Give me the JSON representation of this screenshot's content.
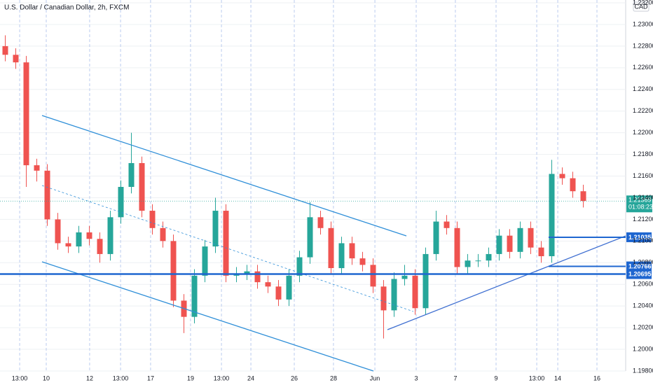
{
  "chart_data": {
    "type": "candlestick",
    "title": "U.S. Dollar / Canadian Dollar, 2h, FXCM",
    "currency": "CAD",
    "up_color": "#26a69a",
    "down_color": "#ef5350",
    "level_color": "#1e66d0",
    "x": [
      0,
      1,
      2,
      3,
      4,
      5,
      6,
      7,
      8,
      9,
      10,
      11,
      12,
      13,
      14,
      15,
      16,
      17,
      18,
      19,
      20,
      21,
      22,
      23,
      24,
      25,
      26,
      27,
      28,
      29,
      30,
      31,
      32,
      33,
      34,
      35,
      36,
      37,
      38,
      39,
      40,
      41,
      42,
      43,
      44,
      45,
      46,
      47,
      48,
      49,
      50,
      51,
      52,
      53,
      54,
      55
    ],
    "open": [
      1.228,
      1.2272,
      1.2265,
      1.217,
      1.2165,
      1.212,
      1.2098,
      1.2095,
      1.2108,
      1.2102,
      1.2088,
      1.2122,
      1.215,
      1.2172,
      1.2128,
      1.2112,
      1.21,
      1.2045,
      1.203,
      1.2068,
      1.2095,
      1.2128,
      1.2068,
      1.207,
      1.2072,
      1.2062,
      1.2058,
      1.2046,
      1.2068,
      1.2085,
      1.2122,
      1.2112,
      1.2075,
      1.2098,
      1.2084,
      1.2078,
      1.2058,
      1.2036,
      1.2065,
      1.2068,
      1.2038,
      1.2088,
      1.2118,
      1.2112,
      1.2076,
      1.2082,
      1.2082,
      1.2088,
      1.2105,
      1.209,
      1.2112,
      1.2094,
      1.2086,
      1.2162,
      1.2158,
      1.2146
    ],
    "high": [
      1.229,
      1.2278,
      1.2271,
      1.2176,
      1.2171,
      1.2126,
      1.2104,
      1.2114,
      1.2114,
      1.2108,
      1.2128,
      1.2156,
      1.22,
      1.2178,
      1.2134,
      1.2118,
      1.2106,
      1.2051,
      1.2074,
      1.2101,
      1.214,
      1.2134,
      1.2076,
      1.2078,
      1.2078,
      1.2068,
      1.2064,
      1.2074,
      1.2091,
      1.2136,
      1.2128,
      1.2118,
      1.2104,
      1.2104,
      1.209,
      1.2084,
      1.2064,
      1.2071,
      1.2078,
      1.2074,
      1.2094,
      1.2128,
      1.2124,
      1.2118,
      1.2088,
      1.2088,
      1.2094,
      1.2111,
      1.2111,
      1.2118,
      1.2118,
      1.21,
      1.2175,
      1.2168,
      1.2164,
      1.2152
    ],
    "low": [
      1.2266,
      1.2259,
      1.215,
      1.2155,
      1.2114,
      1.2092,
      1.2089,
      1.2089,
      1.2096,
      1.208,
      1.2082,
      1.2116,
      1.2144,
      1.2122,
      1.2106,
      1.2094,
      1.2039,
      1.2015,
      1.2024,
      1.2062,
      1.2089,
      1.2062,
      1.2062,
      1.2064,
      1.2056,
      1.2052,
      1.204,
      1.204,
      1.2062,
      1.2079,
      1.2106,
      1.2069,
      1.2069,
      1.2078,
      1.2072,
      1.2052,
      1.201,
      1.203,
      1.2059,
      1.2032,
      1.2032,
      1.2082,
      1.2106,
      1.207,
      1.207,
      1.2076,
      1.2076,
      1.2082,
      1.2084,
      1.2084,
      1.2088,
      1.208,
      1.208,
      1.2152,
      1.214,
      1.2131
    ],
    "close": [
      1.2272,
      1.2265,
      1.217,
      1.2165,
      1.212,
      1.2098,
      1.2095,
      1.2108,
      1.2102,
      1.2088,
      1.2122,
      1.215,
      1.2172,
      1.2128,
      1.2112,
      1.21,
      1.2045,
      1.203,
      1.2068,
      1.2095,
      1.2128,
      1.2068,
      1.207,
      1.2072,
      1.2062,
      1.2058,
      1.2046,
      1.2068,
      1.2085,
      1.2122,
      1.2112,
      1.2075,
      1.2098,
      1.2084,
      1.2078,
      1.2058,
      1.2036,
      1.2065,
      1.2068,
      1.2038,
      1.2088,
      1.2118,
      1.2112,
      1.2076,
      1.2082,
      1.2082,
      1.2088,
      1.2105,
      1.209,
      1.2112,
      1.2094,
      1.2086,
      1.2162,
      1.2158,
      1.2146,
      1.2137
    ],
    "xlim": [
      -0.5,
      59.033
    ],
    "xticks": [
      {
        "value": 1.37,
        "label": "13:00"
      },
      {
        "value": 3.9,
        "label": "10"
      },
      {
        "value": 8.03,
        "label": "12"
      },
      {
        "value": 10.97,
        "label": "13:00"
      },
      {
        "value": 13.83,
        "label": "17"
      },
      {
        "value": 17.63,
        "label": "19"
      },
      {
        "value": 20.57,
        "label": "13:00"
      },
      {
        "value": 23.37,
        "label": "24"
      },
      {
        "value": 27.5,
        "label": "26"
      },
      {
        "value": 31.23,
        "label": "28"
      },
      {
        "value": 35.17,
        "label": "Jun"
      },
      {
        "value": 39.1,
        "label": "3"
      },
      {
        "value": 42.83,
        "label": "7"
      },
      {
        "value": 46.7,
        "label": "9"
      },
      {
        "value": 50.57,
        "label": "13:00"
      },
      {
        "value": 52.57,
        "label": "14"
      },
      {
        "value": 56.3,
        "label": "16"
      }
    ],
    "ylim": [
      1.198,
      1.23226
    ],
    "yticks": [
      {
        "value": 1.198,
        "label": "1.19800"
      },
      {
        "value": 1.2,
        "label": "1.20000"
      },
      {
        "value": 1.202,
        "label": "1.20200"
      },
      {
        "value": 1.204,
        "label": "1.20400"
      },
      {
        "value": 1.206,
        "label": "1.20600"
      },
      {
        "value": 1.208,
        "label": "1.20800"
      },
      {
        "value": 1.21,
        "label": "1.21000"
      },
      {
        "value": 1.212,
        "label": "1.21200"
      },
      {
        "value": 1.214,
        "label": "1.21400"
      },
      {
        "value": 1.216,
        "label": "1.21600"
      },
      {
        "value": 1.218,
        "label": "1.21800"
      },
      {
        "value": 1.22,
        "label": "1.22000"
      },
      {
        "value": 1.222,
        "label": "1.22200"
      },
      {
        "value": 1.224,
        "label": "1.22400"
      },
      {
        "value": 1.226,
        "label": "1.22600"
      },
      {
        "value": 1.228,
        "label": "1.22800"
      },
      {
        "value": 1.23,
        "label": "1.23000"
      },
      {
        "value": 1.232,
        "label": "1.23200"
      }
    ],
    "grid": true,
    "levels": [
      1.21035,
      1.20766,
      1.20695
    ],
    "last_price": 1.21369,
    "countdown": "01:08:23"
  }
}
